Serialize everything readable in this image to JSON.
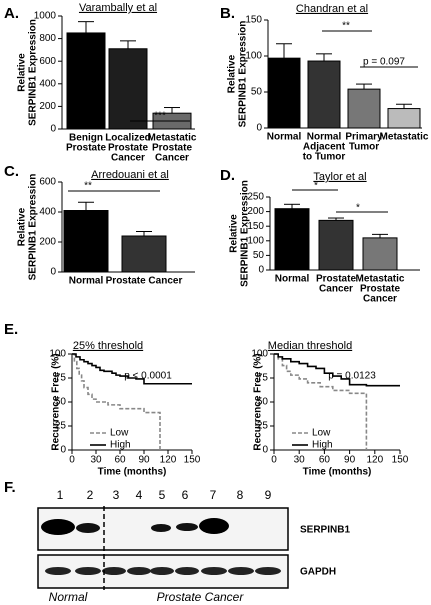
{
  "panel_labels": [
    "A.",
    "B.",
    "C.",
    "D.",
    "E.",
    "F."
  ],
  "chart_data": [
    {
      "type": "bar",
      "title": "Varambally et al",
      "ylabel": [
        "Relative",
        "SERPINB1 Expression"
      ],
      "categories": [
        [
          "Benign",
          "Prostate"
        ],
        [
          "Localized",
          "Prostate",
          "Cancer"
        ],
        [
          "Metastatic",
          "Prostate",
          "Cancer"
        ]
      ],
      "values": [
        850,
        710,
        140
      ],
      "errors": [
        100,
        70,
        50
      ],
      "colors": [
        "#000000",
        "#1e1e1e",
        "#6a6a6a"
      ],
      "ylim": [
        0,
        1000
      ],
      "yticks": [
        0,
        200,
        400,
        600,
        800,
        1000
      ],
      "annotations": [
        "***"
      ]
    },
    {
      "type": "bar",
      "title": "Chandran et al",
      "ylabel": [
        "Relative",
        "SERPINB1 Expression"
      ],
      "categories": [
        [
          "Normal"
        ],
        [
          "Normal",
          "Adjacent",
          "to Tumor"
        ],
        [
          "Primary",
          "Tumor"
        ],
        [
          "Metastatic"
        ]
      ],
      "values": [
        97,
        93,
        54,
        27
      ],
      "errors": [
        20,
        10,
        7,
        6
      ],
      "colors": [
        "#000000",
        "#333333",
        "#777777",
        "#bbbbbb"
      ],
      "ylim": [
        0,
        150
      ],
      "yticks": [
        0,
        50,
        100,
        150
      ],
      "annotations": [
        "**",
        "p = 0.097"
      ]
    },
    {
      "type": "bar",
      "title": "Arredouani et al",
      "ylabel": [
        "Relative",
        "SERPINB1 Expression"
      ],
      "categories": [
        [
          "Normal"
        ],
        [
          "Prostate Cancer"
        ]
      ],
      "values": [
        410,
        240
      ],
      "errors": [
        55,
        30
      ],
      "colors": [
        "#000000",
        "#333333"
      ],
      "ylim": [
        0,
        600
      ],
      "yticks": [
        0,
        200,
        400,
        600
      ],
      "annotations": [
        "**"
      ]
    },
    {
      "type": "bar",
      "title": "Taylor et al",
      "ylabel": [
        "Relative",
        "SERPINB1 Expression"
      ],
      "categories": [
        [
          "Normal"
        ],
        [
          "Prostate",
          "Cancer"
        ],
        [
          "Metastatic",
          "Prostate",
          "Cancer"
        ]
      ],
      "values": [
        210,
        170,
        110
      ],
      "errors": [
        15,
        8,
        12
      ],
      "colors": [
        "#000000",
        "#333333",
        "#777777"
      ],
      "ylim": [
        0,
        250
      ],
      "yticks": [
        0,
        50,
        100,
        150,
        200,
        250
      ],
      "annotations": [
        "*",
        "*"
      ]
    },
    {
      "type": "line",
      "drawstyle": "steps-post",
      "title": "25% threshold",
      "ylabel": "Recurrence Free (%)",
      "xlabel": "Time (months)",
      "annotations": [
        "p < 0.0001"
      ],
      "xlim": [
        0,
        150
      ],
      "xticks": [
        0,
        30,
        60,
        90,
        120,
        150
      ],
      "ylim": [
        0,
        100
      ],
      "yticks": [
        0,
        25,
        50,
        75,
        100
      ],
      "series": [
        {
          "name": "Low",
          "color": "#888888",
          "dashed": true,
          "x": [
            0,
            3,
            6,
            9,
            12,
            15,
            20,
            25,
            30,
            45,
            60,
            90,
            110
          ],
          "values": [
            100,
            92,
            85,
            78,
            72,
            65,
            58,
            53,
            50,
            47,
            43,
            39,
            0
          ]
        },
        {
          "name": "High",
          "color": "#000000",
          "dashed": false,
          "x": [
            0,
            5,
            10,
            15,
            20,
            25,
            30,
            35,
            40,
            50,
            55,
            60,
            70,
            80,
            90,
            150
          ],
          "values": [
            100,
            97,
            94,
            92,
            90,
            88,
            86,
            83,
            82,
            80,
            78,
            77,
            75,
            74,
            69,
            69
          ]
        }
      ]
    },
    {
      "type": "line",
      "drawstyle": "steps-post",
      "title": "Median threshold",
      "ylabel": "Recurrence Free (%)",
      "xlabel": "Time (months)",
      "annotations": [
        "p = 0.0123"
      ],
      "xlim": [
        0,
        150
      ],
      "xticks": [
        0,
        30,
        60,
        90,
        120,
        150
      ],
      "ylim": [
        0,
        100
      ],
      "yticks": [
        0,
        25,
        50,
        75,
        100
      ],
      "series": [
        {
          "name": "Low",
          "color": "#888888",
          "dashed": true,
          "x": [
            0,
            5,
            10,
            15,
            20,
            30,
            40,
            55,
            70,
            90,
            110
          ],
          "values": [
            100,
            95,
            88,
            82,
            78,
            74,
            70,
            66,
            62,
            59,
            0
          ]
        },
        {
          "name": "High",
          "color": "#000000",
          "dashed": false,
          "x": [
            0,
            5,
            10,
            20,
            30,
            40,
            50,
            60,
            70,
            80,
            90,
            110,
            150
          ],
          "values": [
            100,
            97,
            95,
            92,
            90,
            87,
            85,
            80,
            77,
            74,
            68,
            67,
            67
          ]
        }
      ]
    }
  ],
  "blot": {
    "lanes": [
      "1",
      "2",
      "3",
      "4",
      "5",
      "6",
      "7",
      "8",
      "9"
    ],
    "proteins": [
      "SERPINB1",
      "GAPDH"
    ],
    "groups": [
      "Normal",
      "Prostate Cancer"
    ]
  }
}
